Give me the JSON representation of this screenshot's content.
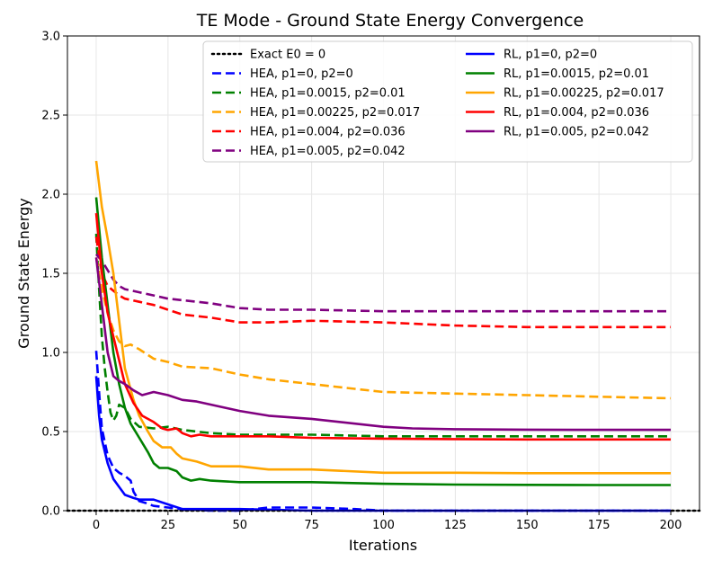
{
  "chart_data": {
    "type": "line",
    "title": "TE Mode - Ground State Energy Convergence",
    "xlabel": "Iterations",
    "ylabel": "Ground State Energy",
    "xlim": [
      -10,
      210
    ],
    "ylim": [
      0.0,
      3.0
    ],
    "xticks": [
      0,
      25,
      50,
      75,
      100,
      125,
      150,
      175,
      200
    ],
    "yticks": [
      "0.0",
      "0.5",
      "1.0",
      "1.5",
      "2.0",
      "2.5",
      "3.0"
    ],
    "grid": true,
    "legend_position": "top-right",
    "series": [
      {
        "name": "Exact E0 = 0",
        "color": "#000000",
        "style": "dotted",
        "points": [
          [
            -10,
            0
          ],
          [
            210,
            0
          ]
        ]
      },
      {
        "name": "HEA, p1=0, p2=0",
        "color": "#0000ff",
        "style": "dashed",
        "points": [
          [
            0,
            1.01
          ],
          [
            1,
            0.75
          ],
          [
            2,
            0.52
          ],
          [
            4,
            0.35
          ],
          [
            6,
            0.27
          ],
          [
            8,
            0.24
          ],
          [
            10,
            0.22
          ],
          [
            12,
            0.19
          ],
          [
            13,
            0.12
          ],
          [
            15,
            0.06
          ],
          [
            17,
            0.05
          ],
          [
            20,
            0.03
          ],
          [
            25,
            0.02
          ],
          [
            30,
            0.01
          ],
          [
            40,
            0.0
          ],
          [
            50,
            0.0
          ],
          [
            60,
            0.02
          ],
          [
            75,
            0.02
          ],
          [
            90,
            0.01
          ],
          [
            100,
            0.0
          ],
          [
            125,
            0.0
          ],
          [
            150,
            0.0
          ],
          [
            175,
            0.0
          ],
          [
            200,
            0.0
          ]
        ]
      },
      {
        "name": "HEA, p1=0.0015, p2=0.01",
        "color": "#008000",
        "style": "dashed",
        "points": [
          [
            0,
            1.75
          ],
          [
            1,
            1.4
          ],
          [
            2,
            1.1
          ],
          [
            3,
            0.9
          ],
          [
            4,
            0.75
          ],
          [
            5,
            0.62
          ],
          [
            6,
            0.57
          ],
          [
            7,
            0.6
          ],
          [
            8,
            0.67
          ],
          [
            10,
            0.65
          ],
          [
            12,
            0.58
          ],
          [
            15,
            0.53
          ],
          [
            20,
            0.52
          ],
          [
            25,
            0.53
          ],
          [
            30,
            0.51
          ],
          [
            40,
            0.49
          ],
          [
            50,
            0.48
          ],
          [
            75,
            0.48
          ],
          [
            100,
            0.47
          ],
          [
            125,
            0.47
          ],
          [
            150,
            0.47
          ],
          [
            175,
            0.47
          ],
          [
            200,
            0.47
          ]
        ]
      },
      {
        "name": "HEA, p1=0.00225, p2=0.017",
        "color": "#ffa500",
        "style": "dashed",
        "points": [
          [
            0,
            1.6
          ],
          [
            2,
            1.4
          ],
          [
            4,
            1.25
          ],
          [
            6,
            1.14
          ],
          [
            8,
            1.07
          ],
          [
            10,
            1.04
          ],
          [
            12,
            1.05
          ],
          [
            15,
            1.02
          ],
          [
            20,
            0.96
          ],
          [
            25,
            0.94
          ],
          [
            30,
            0.91
          ],
          [
            40,
            0.9
          ],
          [
            50,
            0.86
          ],
          [
            60,
            0.83
          ],
          [
            75,
            0.8
          ],
          [
            90,
            0.77
          ],
          [
            100,
            0.75
          ],
          [
            125,
            0.74
          ],
          [
            150,
            0.73
          ],
          [
            175,
            0.72
          ],
          [
            200,
            0.71
          ]
        ]
      },
      {
        "name": "HEA, p1=0.004, p2=0.036",
        "color": "#ff0000",
        "style": "dashed",
        "points": [
          [
            0,
            1.73
          ],
          [
            2,
            1.5
          ],
          [
            4,
            1.42
          ],
          [
            6,
            1.39
          ],
          [
            8,
            1.36
          ],
          [
            10,
            1.34
          ],
          [
            15,
            1.32
          ],
          [
            20,
            1.3
          ],
          [
            25,
            1.27
          ],
          [
            30,
            1.24
          ],
          [
            40,
            1.22
          ],
          [
            50,
            1.19
          ],
          [
            60,
            1.19
          ],
          [
            75,
            1.2
          ],
          [
            100,
            1.19
          ],
          [
            125,
            1.17
          ],
          [
            150,
            1.16
          ],
          [
            175,
            1.16
          ],
          [
            200,
            1.16
          ]
        ]
      },
      {
        "name": "HEA, p1=0.005, p2=0.042",
        "color": "#800080",
        "style": "dashed",
        "points": [
          [
            0,
            1.62
          ],
          [
            2,
            1.58
          ],
          [
            4,
            1.52
          ],
          [
            6,
            1.46
          ],
          [
            8,
            1.42
          ],
          [
            10,
            1.4
          ],
          [
            15,
            1.38
          ],
          [
            20,
            1.36
          ],
          [
            25,
            1.34
          ],
          [
            30,
            1.33
          ],
          [
            40,
            1.31
          ],
          [
            50,
            1.28
          ],
          [
            60,
            1.27
          ],
          [
            75,
            1.27
          ],
          [
            100,
            1.26
          ],
          [
            125,
            1.26
          ],
          [
            150,
            1.26
          ],
          [
            175,
            1.26
          ],
          [
            200,
            1.26
          ]
        ]
      },
      {
        "name": "RL, p1=0, p2=0",
        "color": "#0000ff",
        "style": "solid",
        "points": [
          [
            0,
            0.85
          ],
          [
            1,
            0.6
          ],
          [
            2,
            0.45
          ],
          [
            4,
            0.3
          ],
          [
            6,
            0.2
          ],
          [
            8,
            0.15
          ],
          [
            10,
            0.1
          ],
          [
            13,
            0.08
          ],
          [
            15,
            0.07
          ],
          [
            20,
            0.07
          ],
          [
            25,
            0.04
          ],
          [
            30,
            0.01
          ],
          [
            40,
            0.01
          ],
          [
            50,
            0.01
          ],
          [
            75,
            0.0
          ],
          [
            100,
            0.0
          ],
          [
            150,
            0.0
          ],
          [
            200,
            0.0
          ]
        ]
      },
      {
        "name": "RL, p1=0.0015, p2=0.01",
        "color": "#008000",
        "style": "solid",
        "points": [
          [
            0,
            1.98
          ],
          [
            2,
            1.6
          ],
          [
            4,
            1.3
          ],
          [
            6,
            1.0
          ],
          [
            8,
            0.8
          ],
          [
            10,
            0.65
          ],
          [
            12,
            0.55
          ],
          [
            15,
            0.46
          ],
          [
            18,
            0.37
          ],
          [
            20,
            0.3
          ],
          [
            22,
            0.27
          ],
          [
            25,
            0.27
          ],
          [
            28,
            0.25
          ],
          [
            30,
            0.21
          ],
          [
            33,
            0.19
          ],
          [
            36,
            0.2
          ],
          [
            40,
            0.19
          ],
          [
            50,
            0.18
          ],
          [
            60,
            0.18
          ],
          [
            75,
            0.18
          ],
          [
            100,
            0.17
          ],
          [
            125,
            0.165
          ],
          [
            150,
            0.163
          ],
          [
            175,
            0.162
          ],
          [
            200,
            0.162
          ]
        ]
      },
      {
        "name": "RL, p1=0.00225, p2=0.017",
        "color": "#ffa500",
        "style": "solid",
        "points": [
          [
            0,
            2.21
          ],
          [
            2,
            1.92
          ],
          [
            4,
            1.72
          ],
          [
            6,
            1.5
          ],
          [
            8,
            1.2
          ],
          [
            10,
            0.9
          ],
          [
            13,
            0.7
          ],
          [
            15,
            0.6
          ],
          [
            18,
            0.5
          ],
          [
            20,
            0.44
          ],
          [
            23,
            0.4
          ],
          [
            26,
            0.4
          ],
          [
            28,
            0.36
          ],
          [
            30,
            0.33
          ],
          [
            35,
            0.31
          ],
          [
            40,
            0.28
          ],
          [
            50,
            0.28
          ],
          [
            60,
            0.26
          ],
          [
            75,
            0.26
          ],
          [
            100,
            0.24
          ],
          [
            125,
            0.24
          ],
          [
            150,
            0.237
          ],
          [
            175,
            0.237
          ],
          [
            200,
            0.237
          ]
        ]
      },
      {
        "name": "RL, p1=0.004, p2=0.036",
        "color": "#ff0000",
        "style": "solid",
        "points": [
          [
            0,
            1.88
          ],
          [
            2,
            1.5
          ],
          [
            4,
            1.25
          ],
          [
            6,
            1.1
          ],
          [
            8,
            0.95
          ],
          [
            10,
            0.8
          ],
          [
            13,
            0.68
          ],
          [
            16,
            0.6
          ],
          [
            20,
            0.56
          ],
          [
            23,
            0.52
          ],
          [
            25,
            0.51
          ],
          [
            28,
            0.52
          ],
          [
            30,
            0.49
          ],
          [
            33,
            0.47
          ],
          [
            36,
            0.48
          ],
          [
            40,
            0.47
          ],
          [
            50,
            0.47
          ],
          [
            60,
            0.47
          ],
          [
            75,
            0.46
          ],
          [
            100,
            0.455
          ],
          [
            125,
            0.452
          ],
          [
            150,
            0.45
          ],
          [
            175,
            0.45
          ],
          [
            200,
            0.45
          ]
        ]
      },
      {
        "name": "RL, p1=0.005, p2=0.042",
        "color": "#800080",
        "style": "solid",
        "points": [
          [
            0,
            1.6
          ],
          [
            2,
            1.3
          ],
          [
            4,
            1.0
          ],
          [
            6,
            0.85
          ],
          [
            8,
            0.82
          ],
          [
            10,
            0.8
          ],
          [
            13,
            0.76
          ],
          [
            16,
            0.73
          ],
          [
            20,
            0.75
          ],
          [
            25,
            0.73
          ],
          [
            30,
            0.7
          ],
          [
            35,
            0.69
          ],
          [
            40,
            0.67
          ],
          [
            50,
            0.63
          ],
          [
            60,
            0.6
          ],
          [
            75,
            0.58
          ],
          [
            100,
            0.53
          ],
          [
            110,
            0.52
          ],
          [
            125,
            0.515
          ],
          [
            150,
            0.512
          ],
          [
            175,
            0.511
          ],
          [
            200,
            0.511
          ]
        ]
      }
    ]
  }
}
